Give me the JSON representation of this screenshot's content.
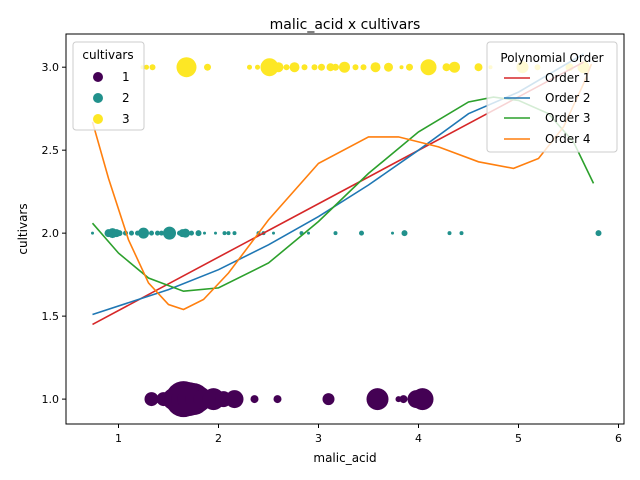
{
  "chart_data": {
    "type": "scatter",
    "title": "malic_acid x cultivars",
    "xlabel": "malic_acid",
    "ylabel": "cultivars",
    "xlim": [
      0.475,
      6.055
    ],
    "ylim": [
      0.85,
      3.2
    ],
    "xticks": [
      1,
      2,
      3,
      4,
      5,
      6
    ],
    "yticks": [
      1.0,
      1.5,
      2.0,
      2.5,
      3.0
    ],
    "xtick_labels": [
      "1",
      "2",
      "3",
      "4",
      "5",
      "6"
    ],
    "ytick_labels": [
      "1.0",
      "1.5",
      "2.0",
      "2.5",
      "3.0"
    ],
    "grid": false,
    "size_legend_note": "marker size reflects count of samples at a point",
    "hue_legend": {
      "title": "cultivars",
      "placement": "upper-left",
      "entries": [
        {
          "label": "1",
          "color": "#440154"
        },
        {
          "label": "2",
          "color": "#21918c"
        },
        {
          "label": "3",
          "color": "#fde725"
        }
      ]
    },
    "line_legend": {
      "title": "Polynomial Order",
      "placement": "upper-right",
      "entries": [
        {
          "label": "Order 1",
          "color": "#d62728"
        },
        {
          "label": "Order 2",
          "color": "#1f77b4"
        },
        {
          "label": "Order 3",
          "color": "#2ca02c"
        },
        {
          "label": "Order 4",
          "color": "#ff7f0e"
        }
      ]
    },
    "points": [
      {
        "x": 1.33,
        "y": 1,
        "r": 7
      },
      {
        "x": 1.45,
        "y": 1,
        "r": 7
      },
      {
        "x": 1.55,
        "y": 1,
        "r": 11
      },
      {
        "x": 1.6,
        "y": 1,
        "r": 14
      },
      {
        "x": 1.65,
        "y": 1,
        "r": 18
      },
      {
        "x": 1.7,
        "y": 1,
        "r": 17
      },
      {
        "x": 1.75,
        "y": 1,
        "r": 16
      },
      {
        "x": 1.8,
        "y": 1,
        "r": 13
      },
      {
        "x": 1.85,
        "y": 1,
        "r": 10
      },
      {
        "x": 1.95,
        "y": 1,
        "r": 11
      },
      {
        "x": 2.05,
        "y": 1,
        "r": 8
      },
      {
        "x": 2.16,
        "y": 1,
        "r": 9
      },
      {
        "x": 2.36,
        "y": 1,
        "r": 4
      },
      {
        "x": 2.59,
        "y": 1,
        "r": 4
      },
      {
        "x": 3.1,
        "y": 1,
        "r": 6
      },
      {
        "x": 3.59,
        "y": 1,
        "r": 11
      },
      {
        "x": 3.8,
        "y": 1,
        "r": 3
      },
      {
        "x": 3.85,
        "y": 1,
        "r": 4
      },
      {
        "x": 3.98,
        "y": 1,
        "r": 9
      },
      {
        "x": 4.04,
        "y": 1,
        "r": 11
      },
      {
        "x": 0.74,
        "y": 2,
        "r": 1.5
      },
      {
        "x": 0.9,
        "y": 2,
        "r": 4
      },
      {
        "x": 0.94,
        "y": 2,
        "r": 5
      },
      {
        "x": 0.98,
        "y": 2,
        "r": 4
      },
      {
        "x": 1.01,
        "y": 2,
        "r": 3
      },
      {
        "x": 1.07,
        "y": 2,
        "r": 2.5
      },
      {
        "x": 1.13,
        "y": 2,
        "r": 2.5
      },
      {
        "x": 1.19,
        "y": 2,
        "r": 2.5
      },
      {
        "x": 1.25,
        "y": 2,
        "r": 5.5
      },
      {
        "x": 1.33,
        "y": 2,
        "r": 2.5
      },
      {
        "x": 1.39,
        "y": 2,
        "r": 2.5
      },
      {
        "x": 1.43,
        "y": 2,
        "r": 2.5
      },
      {
        "x": 1.51,
        "y": 2,
        "r": 6.5
      },
      {
        "x": 1.61,
        "y": 2,
        "r": 2.5
      },
      {
        "x": 1.64,
        "y": 2,
        "r": 4
      },
      {
        "x": 1.67,
        "y": 2,
        "r": 4.5
      },
      {
        "x": 1.73,
        "y": 2,
        "r": 2.5
      },
      {
        "x": 1.8,
        "y": 2,
        "r": 3
      },
      {
        "x": 1.86,
        "y": 2,
        "r": 1.5
      },
      {
        "x": 1.97,
        "y": 2,
        "r": 1.5
      },
      {
        "x": 2.06,
        "y": 2,
        "r": 2
      },
      {
        "x": 2.1,
        "y": 2,
        "r": 2
      },
      {
        "x": 2.16,
        "y": 2,
        "r": 2
      },
      {
        "x": 2.4,
        "y": 2,
        "r": 2
      },
      {
        "x": 2.45,
        "y": 2,
        "r": 2
      },
      {
        "x": 2.55,
        "y": 2,
        "r": 1.5
      },
      {
        "x": 2.83,
        "y": 2,
        "r": 2
      },
      {
        "x": 2.9,
        "y": 2,
        "r": 1.5
      },
      {
        "x": 3.17,
        "y": 2,
        "r": 2
      },
      {
        "x": 3.43,
        "y": 2,
        "r": 2.5
      },
      {
        "x": 3.74,
        "y": 2,
        "r": 1.5
      },
      {
        "x": 3.86,
        "y": 2,
        "r": 3
      },
      {
        "x": 4.31,
        "y": 2,
        "r": 2
      },
      {
        "x": 4.43,
        "y": 2,
        "r": 2
      },
      {
        "x": 5.8,
        "y": 2,
        "r": 3
      },
      {
        "x": 1.24,
        "y": 3,
        "r": 2
      },
      {
        "x": 1.28,
        "y": 3,
        "r": 2.5
      },
      {
        "x": 1.34,
        "y": 3,
        "r": 3
      },
      {
        "x": 1.68,
        "y": 3,
        "r": 10
      },
      {
        "x": 1.89,
        "y": 3,
        "r": 3.5
      },
      {
        "x": 2.31,
        "y": 3,
        "r": 2.5
      },
      {
        "x": 2.39,
        "y": 3,
        "r": 2.5
      },
      {
        "x": 2.51,
        "y": 3,
        "r": 9
      },
      {
        "x": 2.6,
        "y": 3,
        "r": 5
      },
      {
        "x": 2.68,
        "y": 3,
        "r": 3
      },
      {
        "x": 2.76,
        "y": 3,
        "r": 5
      },
      {
        "x": 2.86,
        "y": 3,
        "r": 3
      },
      {
        "x": 2.96,
        "y": 3,
        "r": 3
      },
      {
        "x": 3.03,
        "y": 3,
        "r": 3.5
      },
      {
        "x": 3.12,
        "y": 3,
        "r": 4
      },
      {
        "x": 3.17,
        "y": 3,
        "r": 3.5
      },
      {
        "x": 3.26,
        "y": 3,
        "r": 5.5
      },
      {
        "x": 3.37,
        "y": 3,
        "r": 3
      },
      {
        "x": 3.45,
        "y": 3,
        "r": 3
      },
      {
        "x": 3.57,
        "y": 3,
        "r": 5
      },
      {
        "x": 3.7,
        "y": 3,
        "r": 4.5
      },
      {
        "x": 3.83,
        "y": 3,
        "r": 2
      },
      {
        "x": 3.91,
        "y": 3,
        "r": 3.5
      },
      {
        "x": 4.1,
        "y": 3,
        "r": 8
      },
      {
        "x": 4.28,
        "y": 3,
        "r": 4
      },
      {
        "x": 4.36,
        "y": 3,
        "r": 5.5
      },
      {
        "x": 4.6,
        "y": 3,
        "r": 4
      },
      {
        "x": 4.72,
        "y": 3,
        "r": 2
      },
      {
        "x": 5.04,
        "y": 3,
        "r": 6
      },
      {
        "x": 5.19,
        "y": 3,
        "r": 3
      },
      {
        "x": 5.51,
        "y": 3,
        "r": 4
      },
      {
        "x": 5.65,
        "y": 3,
        "r": 6
      }
    ],
    "fit_curves": [
      {
        "order": 1,
        "color": "#d62728",
        "points": [
          [
            0.74,
            1.45
          ],
          [
            5.65,
            3.03
          ]
        ]
      },
      {
        "order": 2,
        "color": "#1f77b4",
        "points": [
          [
            0.74,
            1.51
          ],
          [
            1.5,
            1.66
          ],
          [
            2.0,
            1.78
          ],
          [
            2.5,
            1.93
          ],
          [
            3.0,
            2.1
          ],
          [
            3.5,
            2.29
          ],
          [
            4.0,
            2.5
          ],
          [
            4.5,
            2.72
          ],
          [
            5.0,
            2.85
          ],
          [
            5.65,
            3.08
          ]
        ]
      },
      {
        "order": 3,
        "color": "#2ca02c",
        "points": [
          [
            0.74,
            2.06
          ],
          [
            1.0,
            1.88
          ],
          [
            1.3,
            1.73
          ],
          [
            1.65,
            1.65
          ],
          [
            2.0,
            1.67
          ],
          [
            2.5,
            1.82
          ],
          [
            3.0,
            2.07
          ],
          [
            3.5,
            2.36
          ],
          [
            4.0,
            2.61
          ],
          [
            4.5,
            2.79
          ],
          [
            4.75,
            2.82
          ],
          [
            5.0,
            2.8
          ],
          [
            5.3,
            2.72
          ],
          [
            5.55,
            2.55
          ],
          [
            5.75,
            2.3
          ]
        ]
      },
      {
        "order": 4,
        "color": "#ff7f0e",
        "points": [
          [
            0.74,
            2.67
          ],
          [
            0.9,
            2.33
          ],
          [
            1.1,
            1.96
          ],
          [
            1.3,
            1.7
          ],
          [
            1.5,
            1.57
          ],
          [
            1.65,
            1.54
          ],
          [
            1.85,
            1.6
          ],
          [
            2.1,
            1.76
          ],
          [
            2.5,
            2.08
          ],
          [
            3.0,
            2.42
          ],
          [
            3.5,
            2.58
          ],
          [
            3.8,
            2.58
          ],
          [
            4.2,
            2.52
          ],
          [
            4.6,
            2.43
          ],
          [
            4.95,
            2.39
          ],
          [
            5.2,
            2.45
          ],
          [
            5.45,
            2.64
          ],
          [
            5.65,
            2.9
          ],
          [
            5.73,
            3.02
          ]
        ]
      }
    ]
  }
}
